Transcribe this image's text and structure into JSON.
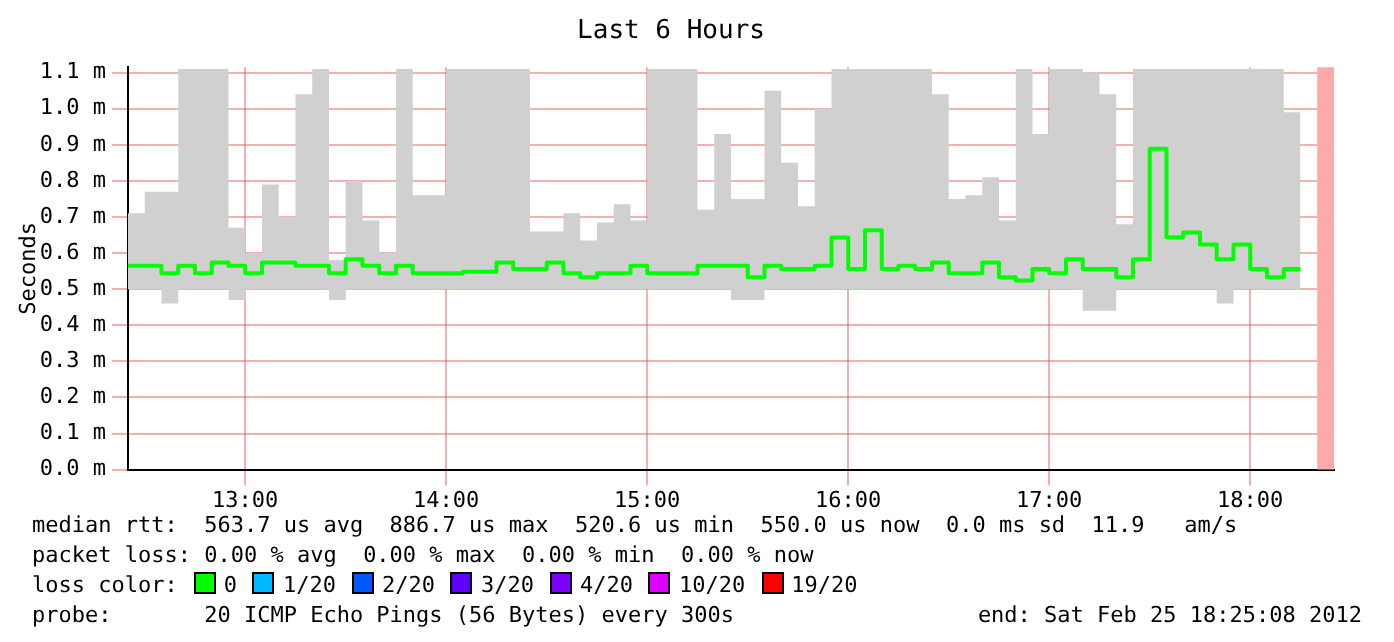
{
  "chart_data": {
    "type": "step",
    "title": "Last 6 Hours",
    "ylabel": "Seconds",
    "x": [
      12.4167,
      12.5,
      12.5833,
      12.6667,
      12.75,
      12.8333,
      12.9167,
      13,
      13.0833,
      13.1667,
      13.25,
      13.3333,
      13.4167,
      13.5,
      13.5833,
      13.6667,
      13.75,
      13.8333,
      13.9167,
      14,
      14.0833,
      14.1667,
      14.25,
      14.3333,
      14.4167,
      14.5,
      14.5833,
      14.6667,
      14.75,
      14.8333,
      14.9167,
      15,
      15.0833,
      15.1667,
      15.25,
      15.3333,
      15.4167,
      15.5,
      15.5833,
      15.6667,
      15.75,
      15.8333,
      15.9167,
      16,
      16.0833,
      16.1667,
      16.25,
      16.3333,
      16.4167,
      16.5,
      16.5833,
      16.6667,
      16.75,
      16.8333,
      16.9167,
      17,
      17.0833,
      17.1667,
      17.25,
      17.3333,
      17.4167,
      17.5,
      17.5833,
      17.6667,
      17.75,
      17.8333,
      17.9167,
      18,
      18.0833,
      18.1667,
      18.25
    ],
    "series": [
      {
        "color": "#00ff00",
        "values": [
          0.565,
          0.565,
          0.565,
          0.544,
          0.565,
          0.544,
          0.574,
          0.565,
          0.544,
          0.574,
          0.574,
          0.565,
          0.565,
          0.544,
          0.583,
          0.565,
          0.544,
          0.565,
          0.544,
          0.544,
          0.544,
          0.548,
          0.548,
          0.574,
          0.556,
          0.556,
          0.574,
          0.544,
          0.533,
          0.544,
          0.544,
          0.565,
          0.544,
          0.544,
          0.544,
          0.565,
          0.565,
          0.565,
          0.533,
          0.565,
          0.556,
          0.556,
          0.565,
          0.643,
          0.556,
          0.663,
          0.556,
          0.565,
          0.556,
          0.574,
          0.544,
          0.544,
          0.574,
          0.533,
          0.524,
          0.556,
          0.544,
          0.583,
          0.556,
          0.556,
          0.533,
          0.583,
          0.889,
          0.644,
          0.657,
          0.624,
          0.583,
          0.624,
          0.556,
          0.533,
          0.556
        ],
        "lower": [
          0.5,
          0.5,
          0.5,
          0.46,
          0.5,
          0.5,
          0.5,
          0.47,
          0.5,
          0.5,
          0.5,
          0.5,
          0.5,
          0.47,
          0.5,
          0.5,
          0.5,
          0.5,
          0.5,
          0.5,
          0.5,
          0.5,
          0.5,
          0.5,
          0.5,
          0.5,
          0.5,
          0.5,
          0.5,
          0.5,
          0.5,
          0.5,
          0.5,
          0.5,
          0.5,
          0.5,
          0.5,
          0.47,
          0.47,
          0.5,
          0.5,
          0.5,
          0.5,
          0.5,
          0.5,
          0.5,
          0.5,
          0.5,
          0.5,
          0.5,
          0.5,
          0.5,
          0.5,
          0.5,
          0.5,
          0.5,
          0.5,
          0.5,
          0.44,
          0.44,
          0.5,
          0.5,
          0.5,
          0.5,
          0.5,
          0.5,
          0.46,
          0.5,
          0.5,
          0.5,
          0.5
        ],
        "upper": [
          0.74,
          0.71,
          0.77,
          0.77,
          1.11,
          1.11,
          1.11,
          0.67,
          0.6,
          0.79,
          0.7,
          1.04,
          1.11,
          0.58,
          0.8,
          0.69,
          0.6,
          1.11,
          0.76,
          0.76,
          1.11,
          1.11,
          1.11,
          1.11,
          1.11,
          0.66,
          0.66,
          0.71,
          0.635,
          0.685,
          0.735,
          0.69,
          1.11,
          1.11,
          1.11,
          0.72,
          0.93,
          0.75,
          0.75,
          1.05,
          0.85,
          0.73,
          1.0,
          1.11,
          1.11,
          1.11,
          1.11,
          1.11,
          1.11,
          1.04,
          0.75,
          0.76,
          0.81,
          0.69,
          1.11,
          0.93,
          1.11,
          1.11,
          1.1,
          1.04,
          0.68,
          1.11,
          1.11,
          1.11,
          1.11,
          1.11,
          1.11,
          1.11,
          1.11,
          1.11,
          0.99
        ]
      }
    ],
    "xlim": [
      12.4167,
      18.4167
    ],
    "xticks": [
      {
        "value": 13,
        "label": "13:00"
      },
      {
        "value": 14,
        "label": "14:00"
      },
      {
        "value": 15,
        "label": "15:00"
      },
      {
        "value": 16,
        "label": "16:00"
      },
      {
        "value": 17,
        "label": "17:00"
      },
      {
        "value": 18,
        "label": "18:00"
      }
    ],
    "ylim": [
      0,
      1.115
    ],
    "yticks": [
      {
        "value": 0,
        "label": "0.0 m"
      },
      {
        "value": 0.1,
        "label": "0.1 m"
      },
      {
        "value": 0.2,
        "label": "0.2 m"
      },
      {
        "value": 0.3,
        "label": "0.3 m"
      },
      {
        "value": 0.4,
        "label": "0.4 m"
      },
      {
        "value": 0.5,
        "label": "0.5 m"
      },
      {
        "value": 0.6,
        "label": "0.6 m"
      },
      {
        "value": 0.7,
        "label": "0.7 m"
      },
      {
        "value": 0.8,
        "label": "0.8 m"
      },
      {
        "value": 0.9,
        "label": "0.9 m"
      },
      {
        "value": 1.0,
        "label": "1.0 m"
      },
      {
        "value": 1.1,
        "label": "1.1 m"
      }
    ],
    "grid": true,
    "bands": [
      {
        "axis": "x",
        "from": 18.3333,
        "to": 18.4167,
        "color": "#ffaaaa"
      }
    ],
    "annotations": [
      "median rtt:  563.7 us avg  886.7 us max  520.6 us min  550.0 us now  0.0 ms sd  11.9   am/s",
      "packet loss: 0.00 % avg  0.00 % max  0.00 % min  0.00 % now",
      "loss color:  0  1/20  2/20  3/20  4/20  10/20  19/20",
      "probe:       20 ICMP Echo Pings (56 Bytes) every 300s",
      "end: Sat Feb 25 18:25:08 2012"
    ]
  }
}
